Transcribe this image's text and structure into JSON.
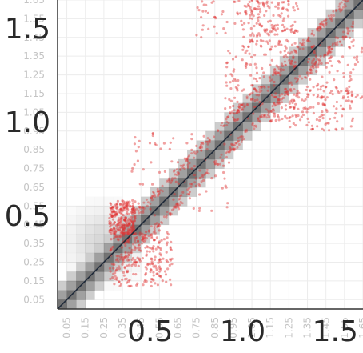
{
  "chart_data": {
    "type": "heatmap",
    "title": "",
    "xlabel": "",
    "ylabel": "",
    "xlim": [
      0.0,
      1.65
    ],
    "ylim": [
      0.0,
      1.65
    ],
    "grid": true,
    "minor_tick_labels": [
      "0.05",
      "0.15",
      "0.25",
      "0.35",
      "0.45",
      "0.55",
      "0.65",
      "0.75",
      "0.85",
      "0.95",
      "1.05",
      "1.15",
      "1.25",
      "1.35",
      "1.45",
      "1.55",
      "1.65"
    ],
    "major_tick_labels": [
      "0.5",
      "1.0",
      "1.5"
    ],
    "major_ticks": [
      0.5,
      1.0,
      1.5
    ],
    "diagonal": {
      "from": [
        0.0,
        0.0
      ],
      "to": [
        1.65,
        1.65
      ],
      "color": "#1f2a3a"
    },
    "heatmap_color": "#5a5a5a",
    "scatter_color": "#e03030",
    "scatter_regions": [
      {
        "x": [
          0.28,
          0.62
        ],
        "y": [
          0.12,
          0.42
        ],
        "weight": 0.9
      },
      {
        "x": [
          0.28,
          0.42
        ],
        "y": [
          0.4,
          0.58
        ],
        "weight": 0.8
      },
      {
        "x": [
          0.4,
          0.95
        ],
        "y": [
          0.5,
          0.95
        ],
        "weight": 0.35
      },
      {
        "x": [
          0.9,
          1.3
        ],
        "y": [
          1.0,
          1.4
        ],
        "weight": 0.7
      },
      {
        "x": [
          1.0,
          1.3
        ],
        "y": [
          1.4,
          1.65
        ],
        "weight": 0.5
      },
      {
        "x": [
          1.25,
          1.6
        ],
        "y": [
          0.95,
          1.2
        ],
        "weight": 0.45
      },
      {
        "x": [
          1.35,
          1.65
        ],
        "y": [
          1.1,
          1.45
        ],
        "weight": 0.35
      },
      {
        "x": [
          0.75,
          1.2
        ],
        "y": [
          1.45,
          1.65
        ],
        "weight": 0.25
      }
    ]
  }
}
